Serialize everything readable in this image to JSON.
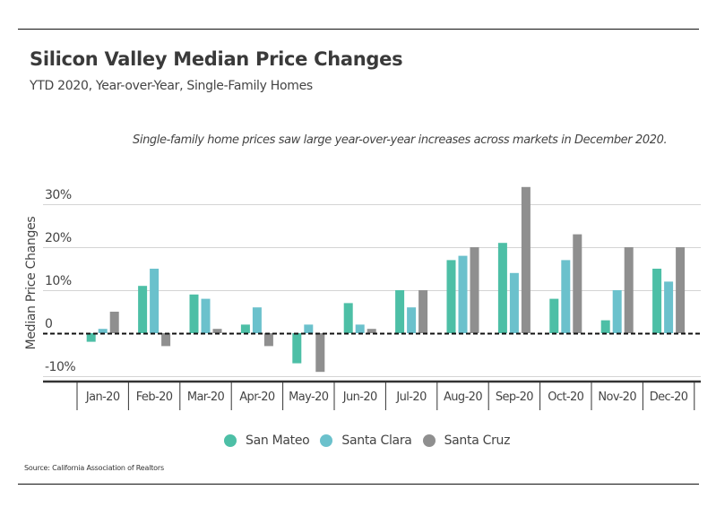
{
  "header": {
    "title": "Silicon Valley Median Price Changes",
    "subtitle": "YTD 2020, Year-over-Year, Single-Family Homes",
    "note": "Single-family home prices saw large year-over-year increases across markets in December 2020."
  },
  "footer": {
    "source": "Source:  California Association of Realtors"
  },
  "chart_data": {
    "type": "bar",
    "title": "Silicon Valley Median Price Changes",
    "subtitle": "YTD 2020, Year-over-Year, Single-Family Homes",
    "annotation": "Single-family home prices saw large year-over-year increases across markets in December 2020.",
    "xlabel": "",
    "ylabel": "Median Price Changes",
    "ylim": [
      -11,
      35
    ],
    "yticks": [
      -10,
      0,
      10,
      20,
      30
    ],
    "ytick_labels": [
      "-10%",
      "0",
      "10%",
      "20%",
      "30%"
    ],
    "grid": true,
    "legend_position": "bottom-center",
    "categories": [
      "Jan-20",
      "Feb-20",
      "Mar-20",
      "Apr-20",
      "May-20",
      "Jun-20",
      "Jul-20",
      "Aug-20",
      "Sep-20",
      "Oct-20",
      "Nov-20",
      "Dec-20"
    ],
    "series": [
      {
        "name": "San Mateo",
        "color": "#4dbfa6",
        "values": [
          -2,
          11,
          9,
          2,
          -7,
          7,
          10,
          17,
          21,
          8,
          3,
          15
        ]
      },
      {
        "name": "Santa Clara",
        "color": "#6bc1cc",
        "values": [
          1,
          15,
          8,
          6,
          2,
          2,
          6,
          18,
          14,
          17,
          10,
          12
        ]
      },
      {
        "name": "Santa Cruz",
        "color": "#8f8f8f",
        "values": [
          5,
          -3,
          1,
          -3,
          -9,
          1,
          10,
          20,
          34,
          23,
          20,
          20
        ]
      }
    ]
  }
}
